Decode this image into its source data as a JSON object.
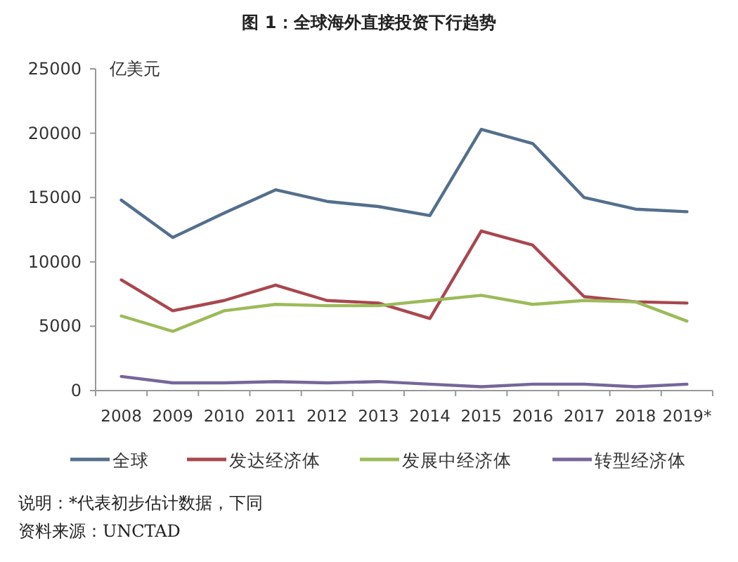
{
  "chart_data": {
    "type": "line",
    "title": "图 1：全球海外直接投资下行趋势",
    "ylabel": "亿美元",
    "categories": [
      "2008",
      "2009",
      "2010",
      "2011",
      "2012",
      "2013",
      "2014",
      "2015",
      "2016",
      "2017",
      "2018",
      "2019*"
    ],
    "series": [
      {
        "name": "全球",
        "color": "#536f8c",
        "values": [
          14800,
          11900,
          13800,
          15600,
          14700,
          14300,
          13600,
          20300,
          19200,
          15000,
          14100,
          13900
        ]
      },
      {
        "name": "发达经济体",
        "color": "#a8474f",
        "values": [
          8600,
          6200,
          7000,
          8200,
          7000,
          6800,
          5600,
          12400,
          11300,
          7300,
          6900,
          6800
        ]
      },
      {
        "name": "发展中经济体",
        "color": "#9bbb59",
        "values": [
          5800,
          4600,
          6200,
          6700,
          6600,
          6600,
          7000,
          7400,
          6700,
          7000,
          6900,
          5400
        ]
      },
      {
        "name": "转型经济体",
        "color": "#76669a",
        "values": [
          1100,
          600,
          600,
          700,
          600,
          700,
          500,
          300,
          500,
          500,
          300,
          500
        ]
      }
    ],
    "ylim": [
      0,
      25000
    ],
    "yticks": [
      0,
      5000,
      10000,
      15000,
      20000,
      25000
    ],
    "grid": false,
    "legend": "bottom",
    "marker": "none",
    "line_style": "solid",
    "annotations": [
      "说明：*代表初步估计数据，下同",
      "资料来源：UNCTAD"
    ]
  }
}
